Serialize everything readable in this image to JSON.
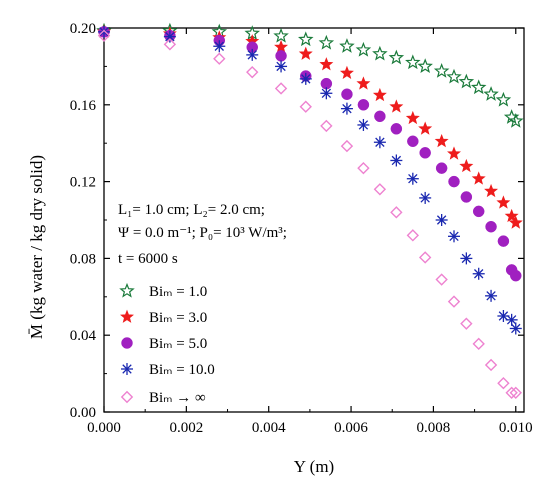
{
  "chart_data": {
    "type": "scatter",
    "title": "",
    "xlabel": "Y (m)",
    "ylabel": "M̄ (kg water / kg dry solid)",
    "xlim": [
      0.0,
      0.0102
    ],
    "ylim": [
      0.0,
      0.2
    ],
    "x_ticks": [
      "0.000",
      "0.002",
      "0.004",
      "0.006",
      "0.008",
      "0.010"
    ],
    "y_ticks": [
      "0.00",
      "0.04",
      "0.08",
      "0.12",
      "0.16",
      "0.20"
    ],
    "grid": false,
    "legend_position": "bottom-left",
    "annotation_lines": [
      "L₁= 1.0 cm; L₂= 2.0 cm;",
      "Ψ = 0.0 m⁻¹; P₀= 10³ W/m³;",
      "t = 6000 s"
    ],
    "series": [
      {
        "name": "Biₘ = 1.0",
        "marker": "star-open",
        "color": "#1a7a3a",
        "x": [
          0.0,
          0.0016,
          0.0028,
          0.0036,
          0.0043,
          0.0049,
          0.0054,
          0.0059,
          0.0063,
          0.0067,
          0.0071,
          0.0075,
          0.0078,
          0.0082,
          0.0085,
          0.0088,
          0.0091,
          0.0094,
          0.0097,
          0.0099,
          0.01
        ],
        "y": [
          0.1985,
          0.1985,
          0.198,
          0.1972,
          0.1958,
          0.194,
          0.1922,
          0.1905,
          0.1885,
          0.1865,
          0.1845,
          0.182,
          0.18,
          0.1775,
          0.1745,
          0.172,
          0.169,
          0.1655,
          0.1625,
          0.1535,
          0.1515
        ]
      },
      {
        "name": "Biₘ = 3.0",
        "marker": "star-filled",
        "color": "#ee1c1c",
        "x": [
          0.0,
          0.0016,
          0.0028,
          0.0036,
          0.0043,
          0.0049,
          0.0054,
          0.0059,
          0.0063,
          0.0067,
          0.0071,
          0.0075,
          0.0078,
          0.0082,
          0.0085,
          0.0088,
          0.0091,
          0.0094,
          0.0097,
          0.0099,
          0.01
        ],
        "y": [
          0.198,
          0.197,
          0.195,
          0.193,
          0.19,
          0.1865,
          0.181,
          0.1765,
          0.171,
          0.165,
          0.159,
          0.153,
          0.1475,
          0.141,
          0.1345,
          0.128,
          0.1215,
          0.115,
          0.109,
          0.102,
          0.0985
        ]
      },
      {
        "name": "Biₘ = 5.0",
        "marker": "circle-filled",
        "color": "#a020c0",
        "x": [
          0.0,
          0.0016,
          0.0028,
          0.0036,
          0.0043,
          0.0049,
          0.0054,
          0.0059,
          0.0063,
          0.0067,
          0.0071,
          0.0075,
          0.0078,
          0.0082,
          0.0085,
          0.0088,
          0.0091,
          0.0094,
          0.0097,
          0.0099,
          0.01
        ],
        "y": [
          0.198,
          0.196,
          0.1935,
          0.19,
          0.1855,
          0.175,
          0.171,
          0.1655,
          0.16,
          0.154,
          0.1475,
          0.141,
          0.135,
          0.127,
          0.12,
          0.112,
          0.1045,
          0.0965,
          0.089,
          0.074,
          0.071
        ]
      },
      {
        "name": "Biₘ = 10.0",
        "marker": "asterisk",
        "color": "#1a28b0",
        "x": [
          0.0,
          0.0016,
          0.0028,
          0.0036,
          0.0043,
          0.0049,
          0.0054,
          0.0059,
          0.0063,
          0.0067,
          0.0071,
          0.0075,
          0.0078,
          0.0082,
          0.0085,
          0.0088,
          0.0091,
          0.0094,
          0.0097,
          0.0099,
          0.01
        ],
        "y": [
          0.198,
          0.1955,
          0.1905,
          0.186,
          0.18,
          0.1735,
          0.166,
          0.158,
          0.1495,
          0.1405,
          0.131,
          0.1215,
          0.1115,
          0.1,
          0.0915,
          0.08,
          0.072,
          0.0605,
          0.05,
          0.048,
          0.0435
        ]
      },
      {
        "name": "Biₘ → ∞",
        "marker": "diamond-open",
        "color": "#ee82d0",
        "x": [
          0.0,
          0.0016,
          0.0028,
          0.0036,
          0.0043,
          0.0049,
          0.0054,
          0.0059,
          0.0063,
          0.0067,
          0.0071,
          0.0075,
          0.0078,
          0.0082,
          0.0085,
          0.0088,
          0.0091,
          0.0094,
          0.0097,
          0.0099,
          0.01
        ],
        "y": [
          0.196,
          0.1915,
          0.184,
          0.177,
          0.1685,
          0.159,
          0.149,
          0.1385,
          0.127,
          0.116,
          0.104,
          0.092,
          0.0805,
          0.069,
          0.0575,
          0.046,
          0.0355,
          0.0245,
          0.015,
          0.01,
          0.01
        ]
      }
    ]
  }
}
